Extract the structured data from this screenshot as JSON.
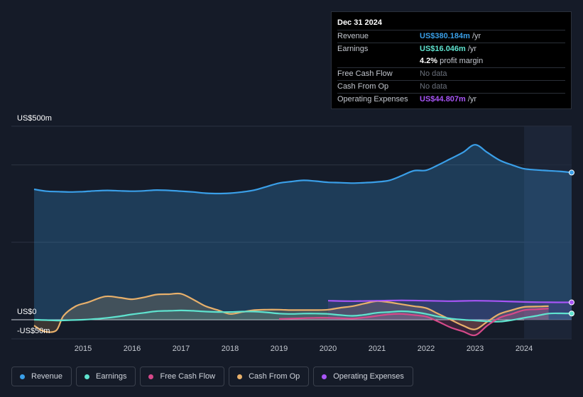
{
  "tooltip": {
    "date": "Dec 31 2024",
    "rows": [
      {
        "label": "Revenue",
        "value": "US$380.184m",
        "unit": "/yr",
        "color": "#3a9fe8"
      },
      {
        "label": "Earnings",
        "value": "US$16.046m",
        "unit": "/yr",
        "color": "#5fe3cf"
      },
      {
        "label": "",
        "value": "4.2%",
        "unit": "profit margin",
        "color": "#ffffff"
      },
      {
        "label": "Free Cash Flow",
        "value": "No data",
        "unit": "",
        "color": "#6b717c"
      },
      {
        "label": "Cash From Op",
        "value": "No data",
        "unit": "",
        "color": "#6b717c"
      },
      {
        "label": "Operating Expenses",
        "value": "US$44.807m",
        "unit": "/yr",
        "color": "#a855f7"
      }
    ]
  },
  "chart_data": {
    "type": "line",
    "title": "",
    "y_axis_labels": [
      "US$500m",
      "US$0",
      "-US$50m"
    ],
    "ylim": [
      -50,
      500
    ],
    "xlim": [
      2013.7,
      2024.97
    ],
    "x_tick_labels": [
      "2015",
      "2016",
      "2017",
      "2018",
      "2019",
      "2020",
      "2021",
      "2022",
      "2023",
      "2024"
    ],
    "x_ticks": [
      2015,
      2016,
      2017,
      2018,
      2019,
      2020,
      2021,
      2022,
      2023,
      2024
    ],
    "highlight_start": 2024.0,
    "series": [
      {
        "name": "Revenue",
        "color": "#3a9fe8",
        "points": [
          [
            2014.0,
            337
          ],
          [
            2014.25,
            332
          ],
          [
            2014.5,
            331
          ],
          [
            2014.75,
            330
          ],
          [
            2015.0,
            331
          ],
          [
            2015.25,
            333
          ],
          [
            2015.5,
            334
          ],
          [
            2015.75,
            333
          ],
          [
            2016.0,
            332
          ],
          [
            2016.25,
            333
          ],
          [
            2016.5,
            335
          ],
          [
            2016.75,
            334
          ],
          [
            2017.0,
            332
          ],
          [
            2017.25,
            330
          ],
          [
            2017.5,
            327
          ],
          [
            2017.75,
            326
          ],
          [
            2018.0,
            327
          ],
          [
            2018.25,
            330
          ],
          [
            2018.5,
            335
          ],
          [
            2018.75,
            344
          ],
          [
            2019.0,
            353
          ],
          [
            2019.25,
            357
          ],
          [
            2019.5,
            360
          ],
          [
            2019.75,
            358
          ],
          [
            2020.0,
            355
          ],
          [
            2020.25,
            354
          ],
          [
            2020.5,
            353
          ],
          [
            2020.75,
            354
          ],
          [
            2021.0,
            356
          ],
          [
            2021.25,
            360
          ],
          [
            2021.5,
            372
          ],
          [
            2021.75,
            385
          ],
          [
            2022.0,
            386
          ],
          [
            2022.25,
            400
          ],
          [
            2022.5,
            416
          ],
          [
            2022.75,
            432
          ],
          [
            2023.0,
            452
          ],
          [
            2023.25,
            432
          ],
          [
            2023.5,
            412
          ],
          [
            2023.75,
            400
          ],
          [
            2024.0,
            390
          ],
          [
            2024.25,
            387
          ],
          [
            2024.5,
            385
          ],
          [
            2024.75,
            383
          ],
          [
            2024.97,
            380.184
          ]
        ]
      },
      {
        "name": "Earnings",
        "color": "#5fe3cf",
        "points": [
          [
            2014.0,
            0
          ],
          [
            2014.25,
            -1
          ],
          [
            2014.5,
            -2
          ],
          [
            2014.75,
            -1
          ],
          [
            2015.0,
            0
          ],
          [
            2015.25,
            2
          ],
          [
            2015.5,
            5
          ],
          [
            2015.75,
            9
          ],
          [
            2016.0,
            14
          ],
          [
            2016.25,
            18
          ],
          [
            2016.5,
            22
          ],
          [
            2016.75,
            23
          ],
          [
            2017.0,
            24
          ],
          [
            2017.25,
            23
          ],
          [
            2017.5,
            21
          ],
          [
            2017.75,
            20
          ],
          [
            2018.0,
            20
          ],
          [
            2018.25,
            21
          ],
          [
            2018.5,
            21
          ],
          [
            2018.75,
            19
          ],
          [
            2019.0,
            16
          ],
          [
            2019.25,
            15
          ],
          [
            2019.5,
            16
          ],
          [
            2019.75,
            16
          ],
          [
            2020.0,
            15
          ],
          [
            2020.25,
            12
          ],
          [
            2020.5,
            10
          ],
          [
            2020.75,
            13
          ],
          [
            2021.0,
            18
          ],
          [
            2021.25,
            20
          ],
          [
            2021.5,
            22
          ],
          [
            2021.75,
            20
          ],
          [
            2022.0,
            15
          ],
          [
            2022.25,
            8
          ],
          [
            2022.5,
            3
          ],
          [
            2022.75,
            0
          ],
          [
            2023.0,
            -2
          ],
          [
            2023.25,
            -4
          ],
          [
            2023.5,
            -5
          ],
          [
            2023.75,
            -1
          ],
          [
            2024.0,
            5
          ],
          [
            2024.25,
            10
          ],
          [
            2024.5,
            16
          ],
          [
            2024.75,
            16.5
          ],
          [
            2024.97,
            16.046
          ]
        ]
      },
      {
        "name": "Free Cash Flow",
        "color": "#d6498a",
        "points": [
          [
            2019.0,
            2
          ],
          [
            2019.25,
            3
          ],
          [
            2019.5,
            4
          ],
          [
            2019.75,
            5
          ],
          [
            2020.0,
            5
          ],
          [
            2020.25,
            4
          ],
          [
            2020.5,
            3
          ],
          [
            2020.75,
            6
          ],
          [
            2021.0,
            10
          ],
          [
            2021.25,
            14
          ],
          [
            2021.5,
            15
          ],
          [
            2021.75,
            12
          ],
          [
            2022.0,
            8
          ],
          [
            2022.25,
            -5
          ],
          [
            2022.5,
            -20
          ],
          [
            2022.75,
            -30
          ],
          [
            2023.0,
            -40
          ],
          [
            2023.25,
            -15
          ],
          [
            2023.5,
            5
          ],
          [
            2023.75,
            15
          ],
          [
            2024.0,
            25
          ],
          [
            2024.25,
            27
          ],
          [
            2024.5,
            29
          ]
        ]
      },
      {
        "name": "Cash From Op",
        "color": "#e8b06b",
        "points": [
          [
            2014.0,
            -15
          ],
          [
            2014.2,
            -30
          ],
          [
            2014.45,
            -28
          ],
          [
            2014.6,
            10
          ],
          [
            2014.85,
            35
          ],
          [
            2015.1,
            45
          ],
          [
            2015.45,
            60
          ],
          [
            2015.75,
            57
          ],
          [
            2016.0,
            53
          ],
          [
            2016.25,
            58
          ],
          [
            2016.5,
            65
          ],
          [
            2016.75,
            66
          ],
          [
            2017.0,
            67
          ],
          [
            2017.25,
            52
          ],
          [
            2017.5,
            35
          ],
          [
            2017.75,
            25
          ],
          [
            2018.0,
            15
          ],
          [
            2018.25,
            20
          ],
          [
            2018.5,
            25
          ],
          [
            2018.75,
            26
          ],
          [
            2019.0,
            26
          ],
          [
            2019.25,
            25
          ],
          [
            2019.5,
            25
          ],
          [
            2019.75,
            25
          ],
          [
            2020.0,
            26
          ],
          [
            2020.25,
            31
          ],
          [
            2020.5,
            35
          ],
          [
            2020.75,
            42
          ],
          [
            2021.0,
            48
          ],
          [
            2021.25,
            45
          ],
          [
            2021.5,
            40
          ],
          [
            2021.75,
            35
          ],
          [
            2022.0,
            30
          ],
          [
            2022.25,
            15
          ],
          [
            2022.5,
            0
          ],
          [
            2022.75,
            -15
          ],
          [
            2023.0,
            -25
          ],
          [
            2023.25,
            -5
          ],
          [
            2023.5,
            15
          ],
          [
            2023.75,
            25
          ],
          [
            2024.0,
            33
          ],
          [
            2024.25,
            34
          ],
          [
            2024.5,
            35
          ]
        ]
      },
      {
        "name": "Operating Expenses",
        "color": "#a855f7",
        "points": [
          [
            2020.0,
            49
          ],
          [
            2020.5,
            48
          ],
          [
            2021.0,
            49
          ],
          [
            2021.5,
            50
          ],
          [
            2022.0,
            49
          ],
          [
            2022.5,
            48
          ],
          [
            2023.0,
            49
          ],
          [
            2023.5,
            48
          ],
          [
            2024.0,
            46
          ],
          [
            2024.5,
            45
          ],
          [
            2024.97,
            44.807
          ]
        ]
      }
    ]
  },
  "legend": [
    {
      "label": "Revenue",
      "color": "#3a9fe8"
    },
    {
      "label": "Earnings",
      "color": "#5fe3cf"
    },
    {
      "label": "Free Cash Flow",
      "color": "#d6498a"
    },
    {
      "label": "Cash From Op",
      "color": "#e8b06b"
    },
    {
      "label": "Operating Expenses",
      "color": "#a855f7"
    }
  ]
}
